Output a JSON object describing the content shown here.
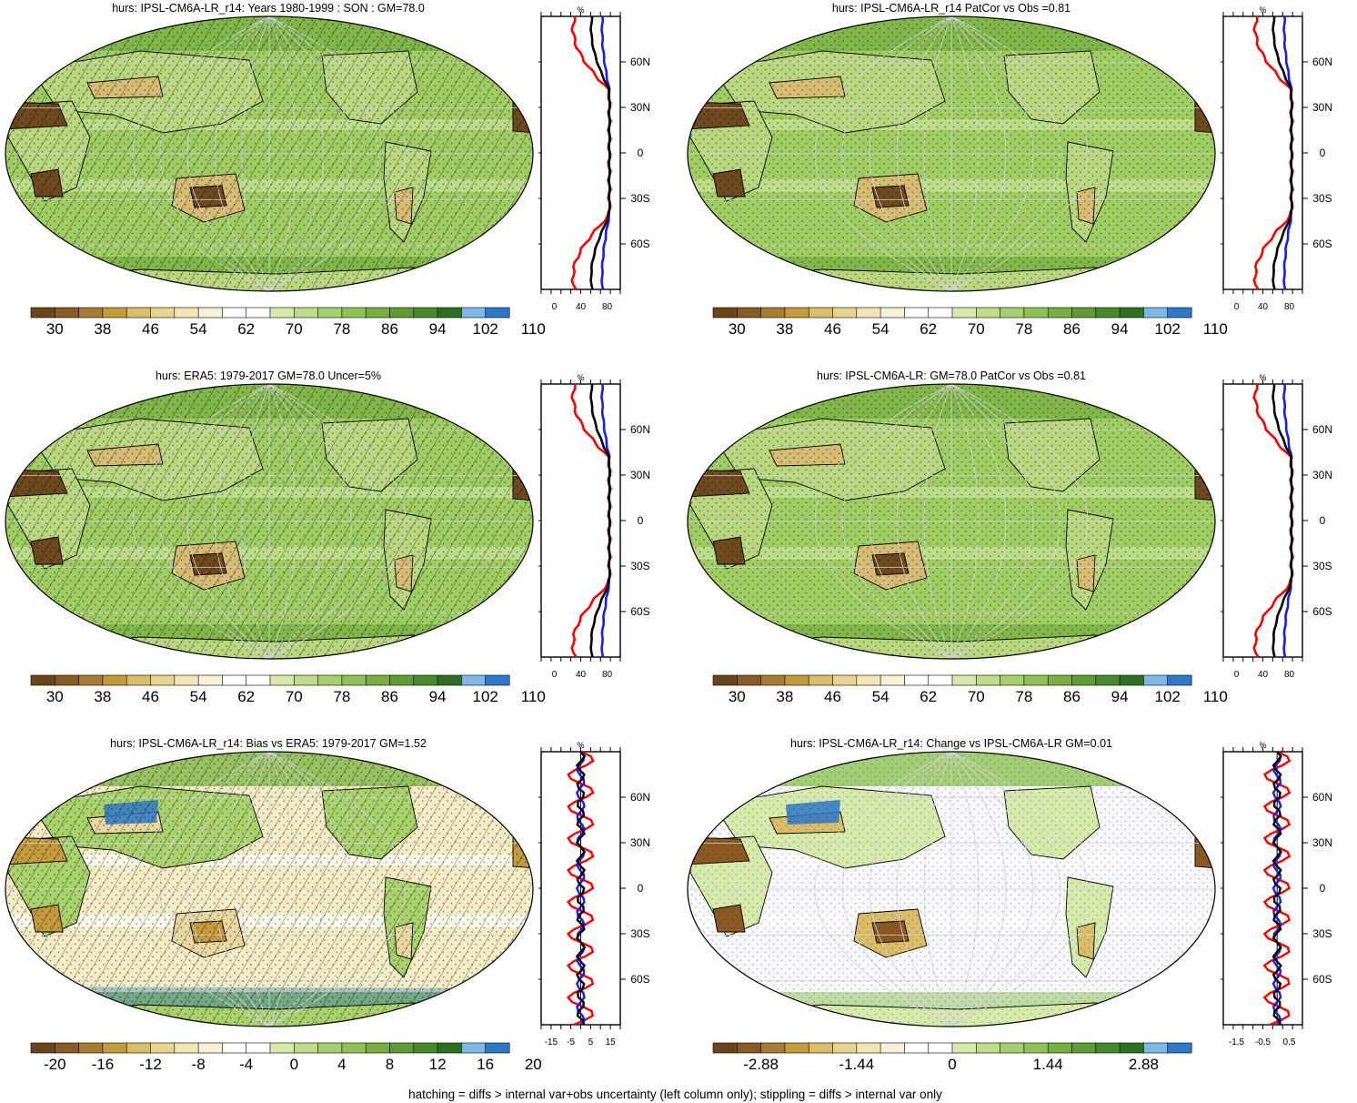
{
  "footnote": "hatching = diffs > internal var+obs uncertainty (left column only); stippling = diffs > internal var only",
  "lat_labels": [
    "60N",
    "30N",
    "0",
    "30S",
    "60S"
  ],
  "profile_unit": "%",
  "palettes": {
    "abs": [
      "#6b4419",
      "#8a5a22",
      "#a87a32",
      "#c59a3c",
      "#d9bd68",
      "#e8d48f",
      "#f2e6b5",
      "#f7f1d8",
      "#ffffff",
      "#ffffff",
      "#d6ebab",
      "#bedd8c",
      "#a6d06f",
      "#8fc256",
      "#77b041",
      "#5f9d34",
      "#478a2b",
      "#2e6f23",
      "#7fb8e6",
      "#2f78c7"
    ],
    "bias": [
      "#6b4419",
      "#8a5a22",
      "#a87a32",
      "#c59a3c",
      "#d9bd68",
      "#e8d48f",
      "#f2e6b5",
      "#f7f1d8",
      "#ffffff",
      "#ffffff",
      "#d6ebab",
      "#bedd8c",
      "#a6d06f",
      "#8fc256",
      "#77b041",
      "#5f9d34",
      "#478a2b",
      "#2e6f23",
      "#7fb8e6",
      "#2f78c7"
    ]
  },
  "panels": [
    {
      "title": "hurs: IPSL-CM6A-LR_r14: Years 1980-1999 : SON : GM=78.0",
      "map_style": "abs",
      "hatched": true,
      "stippled": true,
      "colorbar_labels": [
        "30",
        "38",
        "46",
        "54",
        "62",
        "70",
        "78",
        "86",
        "94",
        "102",
        "110"
      ],
      "profile_ticks": [
        "0",
        "40",
        "80"
      ]
    },
    {
      "title": "hurs: IPSL-CM6A-LR_r14 PatCor vs Obs =0.81",
      "map_style": "abs",
      "hatched": false,
      "stippled": true,
      "colorbar_labels": [
        "30",
        "38",
        "46",
        "54",
        "62",
        "70",
        "78",
        "86",
        "94",
        "102",
        "110"
      ],
      "profile_ticks": [
        "0",
        "40",
        "80"
      ]
    },
    {
      "title": "hurs: ERA5: 1979-2017 GM=78.0 Uncer=5%",
      "map_style": "abs",
      "hatched": true,
      "stippled": true,
      "colorbar_labels": [
        "30",
        "38",
        "46",
        "54",
        "62",
        "70",
        "78",
        "86",
        "94",
        "102",
        "110"
      ],
      "profile_ticks": [
        "0",
        "40",
        "80"
      ]
    },
    {
      "title": "hurs: IPSL-CM6A-LR: GM=78.0 PatCor vs Obs =0.81",
      "map_style": "abs",
      "hatched": false,
      "stippled": true,
      "colorbar_labels": [
        "30",
        "38",
        "46",
        "54",
        "62",
        "70",
        "78",
        "86",
        "94",
        "102",
        "110"
      ],
      "profile_ticks": [
        "0",
        "40",
        "80"
      ]
    },
    {
      "title": "hurs: IPSL-CM6A-LR_r14: Bias vs ERA5: 1979-2017  GM=1.52",
      "map_style": "bias",
      "hatched": true,
      "stippled": true,
      "colorbar_labels": [
        "-20",
        "-16",
        "-12",
        "-8",
        "-4",
        "0",
        "4",
        "8",
        "12",
        "16",
        "20"
      ],
      "profile_ticks": [
        "-15",
        "-5",
        "5",
        "15"
      ]
    },
    {
      "title": "hurs: IPSL-CM6A-LR_r14: Change vs IPSL-CM6A-LR GM=0.01",
      "map_style": "change",
      "hatched": false,
      "stippled": true,
      "colorbar_labels": [
        "-2.88",
        "-1.44",
        "0",
        "1.44",
        "2.88"
      ],
      "profile_ticks": [
        "-1.5",
        "-0.5",
        "0.5"
      ]
    }
  ]
}
